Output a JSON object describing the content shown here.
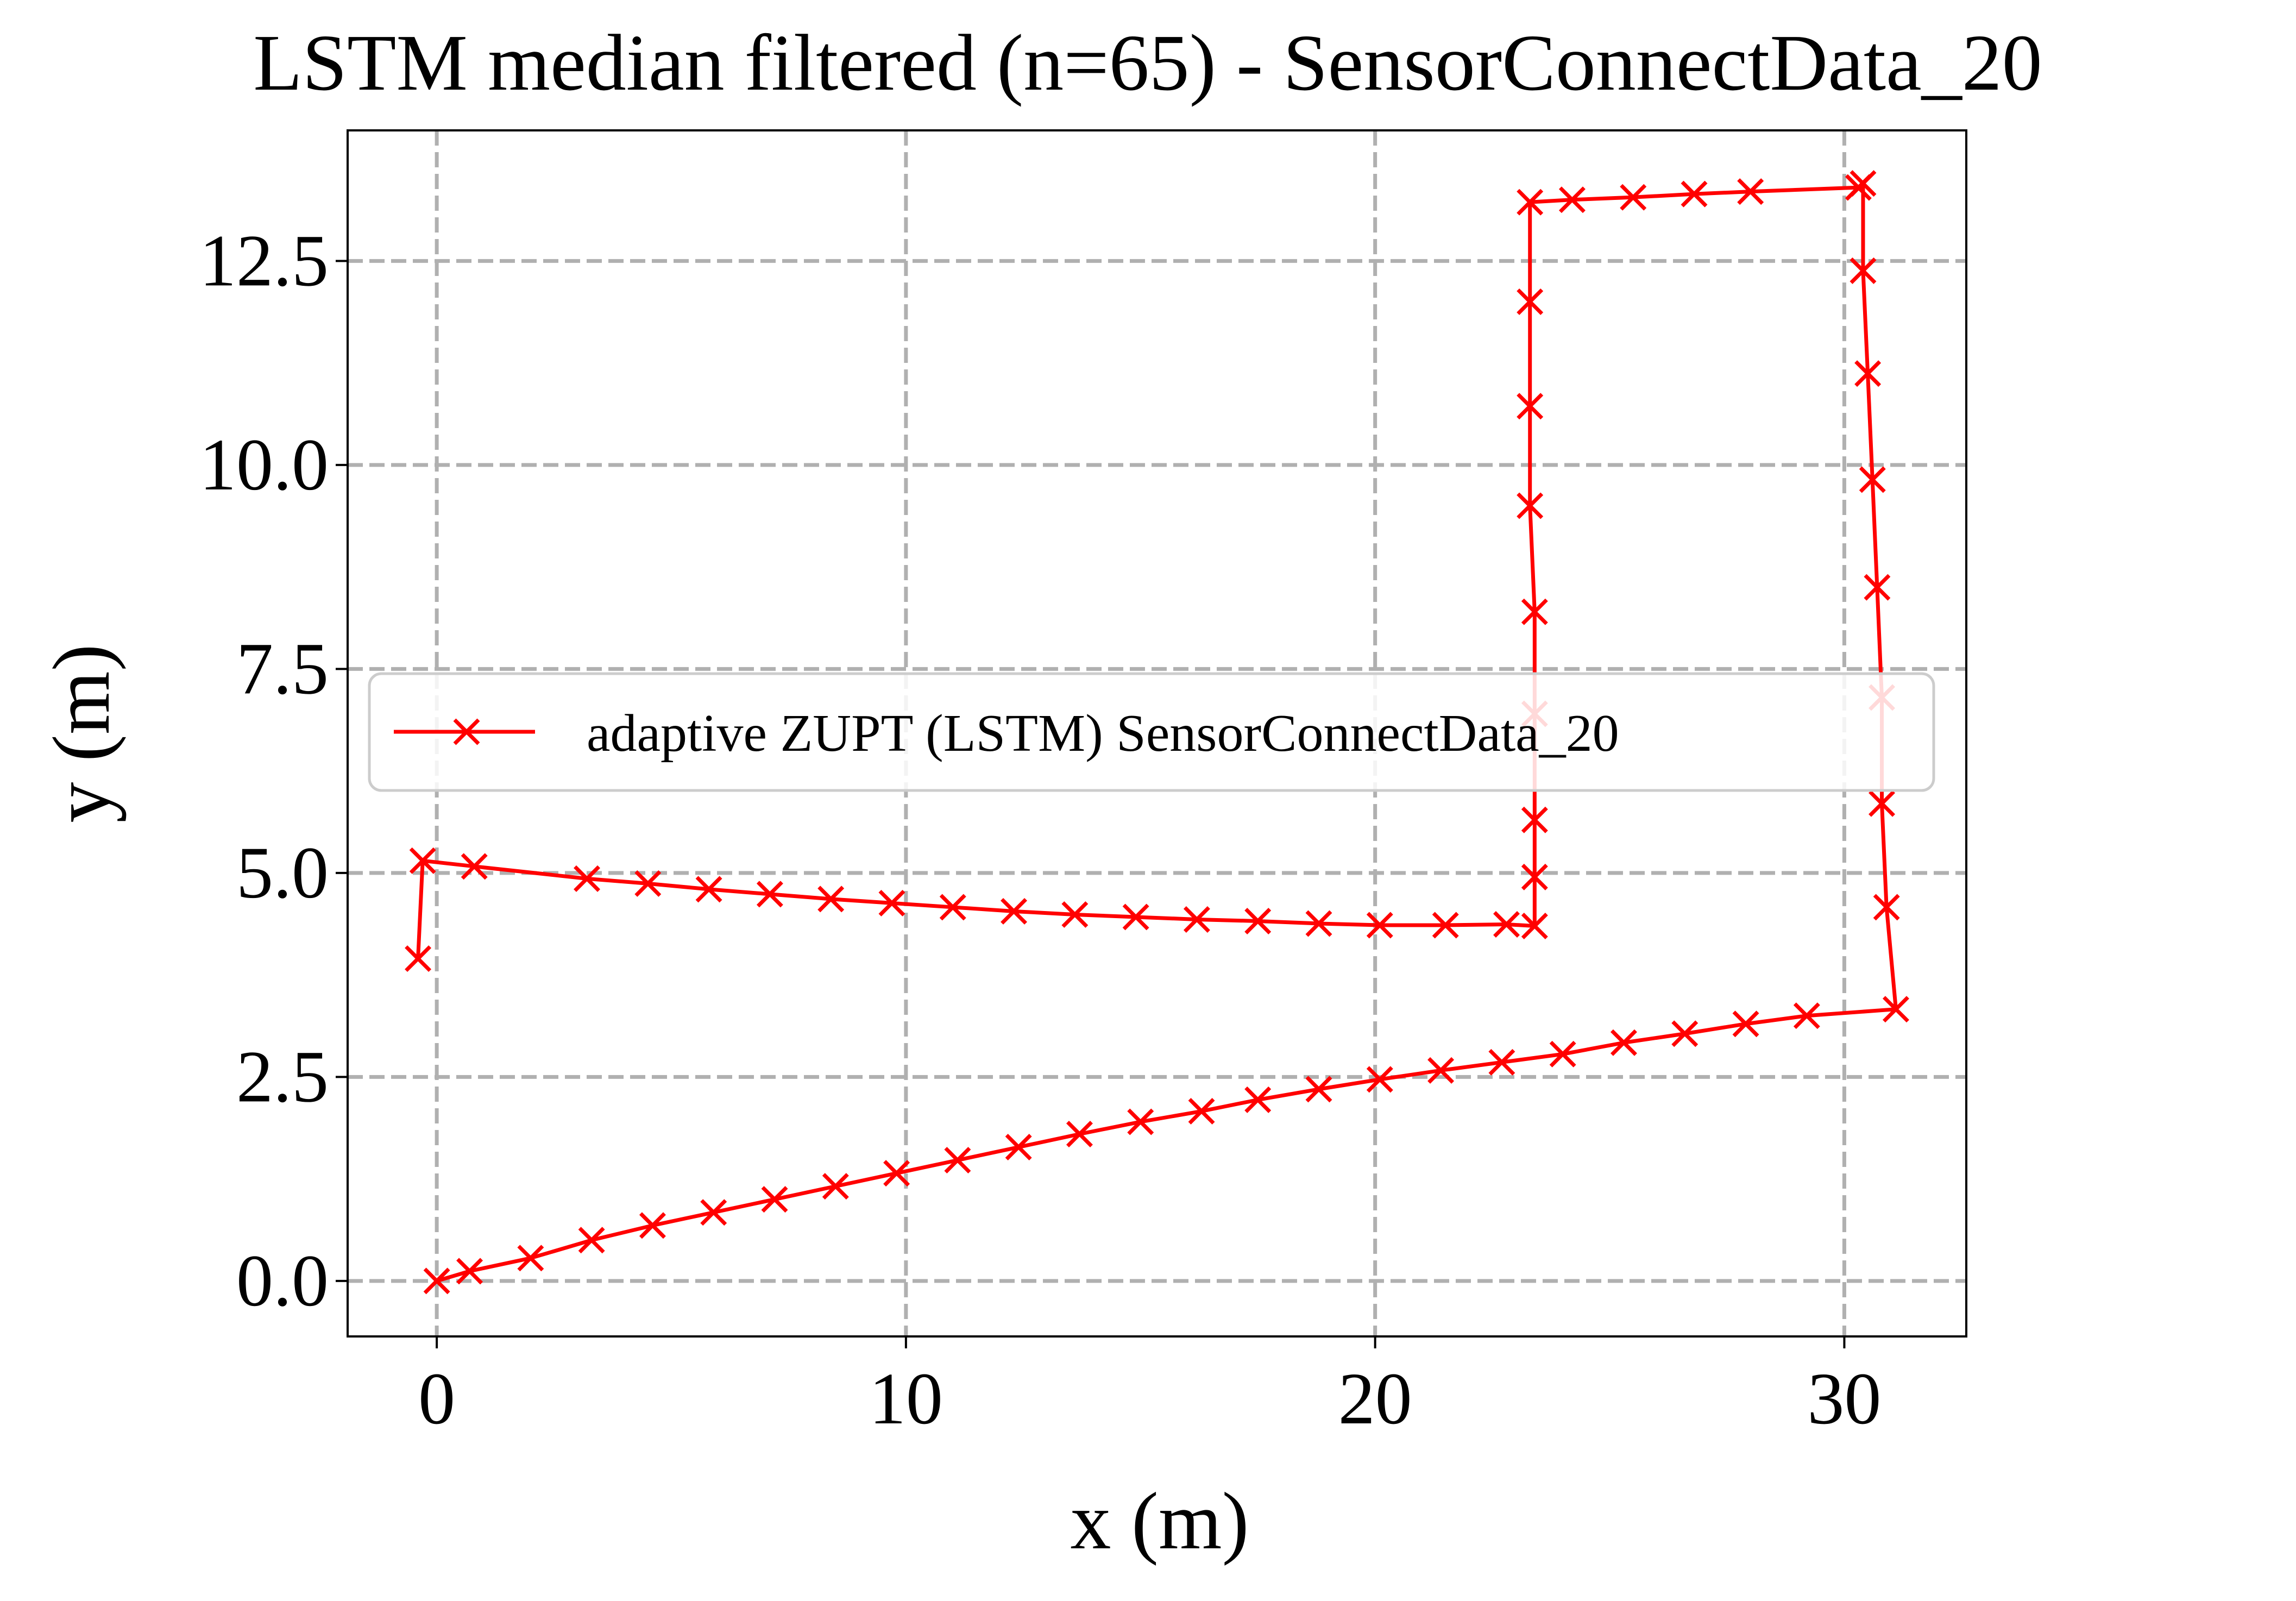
{
  "chart_data": {
    "type": "line",
    "title": "LSTM median filtered (n=65) - SensorConnectData_20",
    "xlabel": "x (m)",
    "ylabel": "y (m)",
    "xlim": [
      -1.9,
      32.6
    ],
    "ylim": [
      -0.68,
      14.1
    ],
    "xticks": [
      0,
      10,
      20,
      30
    ],
    "yticks": [
      0.0,
      2.5,
      5.0,
      7.5,
      10.0,
      12.5
    ],
    "xtick_labels": [
      "0",
      "10",
      "20",
      "30"
    ],
    "ytick_labels": [
      "0.0",
      "2.5",
      "5.0",
      "7.5",
      "10.0",
      "12.5"
    ],
    "grid": true,
    "legend_position": "center-right",
    "series": [
      {
        "name": "adaptive ZUPT (LSTM) SensorConnectData_20",
        "color": "#ff0000",
        "marker": "x",
        "x": [
          0.0,
          0.7,
          2.0,
          3.3,
          4.6,
          5.9,
          7.2,
          8.5,
          9.8,
          11.1,
          12.4,
          13.7,
          15.0,
          16.3,
          17.5,
          18.8,
          20.1,
          21.4,
          22.7,
          24.0,
          25.3,
          26.6,
          27.9,
          29.2,
          31.1,
          30.9,
          30.8,
          30.8,
          30.7,
          30.6,
          30.5,
          30.4,
          30.4,
          30.3,
          28.0,
          26.8,
          25.5,
          24.2,
          23.3,
          23.3,
          23.3,
          23.3,
          23.4,
          23.4,
          23.4,
          23.4,
          23.4,
          22.8,
          21.5,
          20.1,
          18.8,
          17.5,
          16.2,
          14.9,
          13.6,
          12.3,
          11.0,
          9.7,
          8.4,
          7.1,
          5.8,
          4.5,
          3.2,
          0.8,
          -0.3,
          -0.4
        ],
        "y": [
          0.0,
          0.12,
          0.28,
          0.5,
          0.68,
          0.84,
          1.0,
          1.16,
          1.32,
          1.48,
          1.64,
          1.8,
          1.95,
          2.08,
          2.22,
          2.35,
          2.47,
          2.58,
          2.68,
          2.78,
          2.92,
          3.03,
          3.15,
          3.25,
          3.33,
          4.58,
          5.85,
          7.15,
          8.5,
          9.82,
          11.12,
          12.38,
          13.45,
          13.4,
          13.35,
          13.32,
          13.28,
          13.25,
          13.22,
          12.0,
          10.72,
          9.5,
          8.2,
          6.95,
          5.65,
          4.95,
          4.35,
          4.37,
          4.36,
          4.36,
          4.38,
          4.41,
          4.43,
          4.46,
          4.49,
          4.53,
          4.58,
          4.63,
          4.68,
          4.74,
          4.8,
          4.87,
          4.93,
          5.08,
          5.15,
          3.95
        ]
      }
    ]
  }
}
